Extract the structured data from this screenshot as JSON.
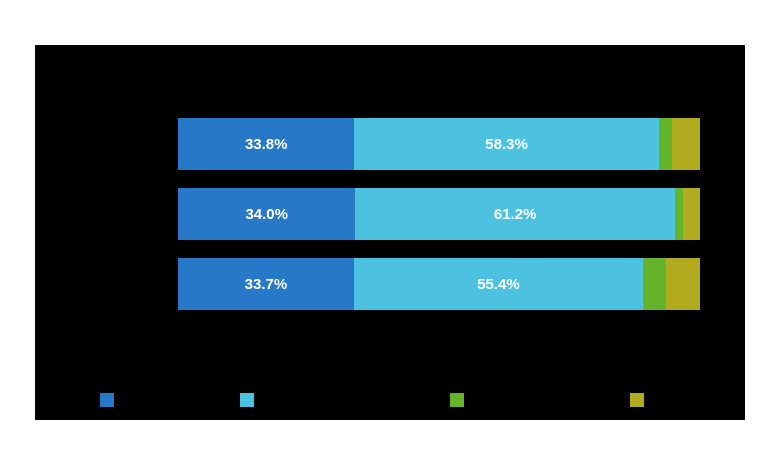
{
  "page": {
    "background_color": "#ffffff",
    "panel_background_color": "#000000"
  },
  "chart_data": {
    "type": "bar",
    "subtype": "horizontal-stacked",
    "unit": "%",
    "xlim": [
      0,
      100
    ],
    "grid": false,
    "legend_position": "bottom",
    "colors": {
      "blue": "#2878c8",
      "cyan": "#4cc2e0",
      "green": "#64b52c",
      "olive": "#b2ab20"
    },
    "legend": [
      {
        "color": "#2878c8"
      },
      {
        "color": "#4cc2e0"
      },
      {
        "color": "#64b52c"
      },
      {
        "color": "#b2ab20"
      }
    ],
    "bars": [
      {
        "segments": [
          {
            "value": 33.8,
            "label": "33.8%",
            "color": "#2878c8",
            "show_label": true
          },
          {
            "value": 58.3,
            "label": "58.3%",
            "color": "#4cc2e0",
            "show_label": true
          },
          {
            "value": 2.6,
            "label": "",
            "color": "#64b52c",
            "show_label": false
          },
          {
            "value": 5.3,
            "label": "",
            "color": "#b2ab20",
            "show_label": false
          }
        ]
      },
      {
        "segments": [
          {
            "value": 34.0,
            "label": "34.0%",
            "color": "#2878c8",
            "show_label": true
          },
          {
            "value": 61.2,
            "label": "61.2%",
            "color": "#4cc2e0",
            "show_label": true
          },
          {
            "value": 1.6,
            "label": "",
            "color": "#64b52c",
            "show_label": false
          },
          {
            "value": 3.2,
            "label": "",
            "color": "#b2ab20",
            "show_label": false
          }
        ]
      },
      {
        "segments": [
          {
            "value": 33.7,
            "label": "33.7%",
            "color": "#2878c8",
            "show_label": true
          },
          {
            "value": 55.4,
            "label": "55.4%",
            "color": "#4cc2e0",
            "show_label": true
          },
          {
            "value": 4.3,
            "label": "",
            "color": "#64b52c",
            "show_label": false
          },
          {
            "value": 6.6,
            "label": "",
            "color": "#b2ab20",
            "show_label": false
          }
        ]
      }
    ]
  }
}
